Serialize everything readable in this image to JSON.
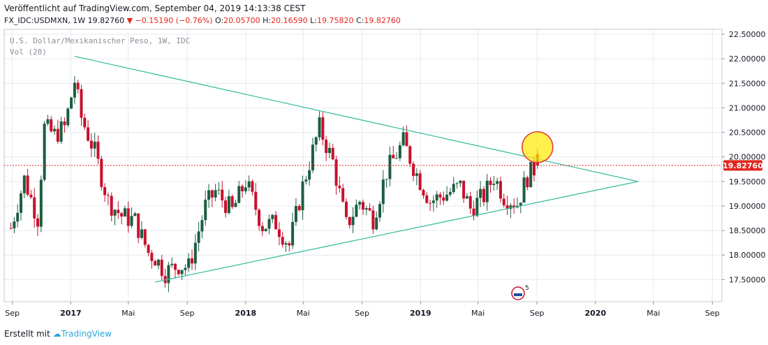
{
  "header": {
    "published": "Veröffentlicht auf TradingView.com, September 04, 2019 14:13:38 CEST",
    "symbol_line_prefix": "FX_IDC:USDMXN, 1W 19.82760",
    "change": "▼ −0.15190 (−0.76%)",
    "o_label": "O:",
    "o_value": "20.05700",
    "h_label": "H:",
    "h_value": "20.16590",
    "l_label": "L:",
    "l_value": "19.75820",
    "c_label": "C:",
    "c_value": "19.82760"
  },
  "overlay": {
    "series_title": "U.S. Dollar/Mexikanischer Peso, 1W, IDC",
    "volume_label": "Vol (20)"
  },
  "price_badge": "19.82760",
  "footer": {
    "created_with": "Erstellt mit",
    "brand": "TradingView"
  },
  "colors": {
    "up": "#1b5e40",
    "down": "#c8102e",
    "trendline": "#3ebf9f",
    "badge": "#e0261f",
    "highlight_fill": "#ffea00",
    "highlight_stroke": "#e53935",
    "grid": "#e6e9ef"
  },
  "chart_data": {
    "type": "candlestick",
    "symbol": "FX_IDC:USDMXN",
    "interval": "1W",
    "ylim": [
      17.05,
      22.6
    ],
    "yticks": [
      "22.50000",
      "22.00000",
      "21.50000",
      "21.00000",
      "20.50000",
      "20.00000",
      "19.50000",
      "19.00000",
      "18.50000",
      "18.00000",
      "17.50000"
    ],
    "xticks": [
      {
        "label": "Sep",
        "year": false
      },
      {
        "label": "2017",
        "year": true
      },
      {
        "label": "Mai",
        "year": false
      },
      {
        "label": "Sep",
        "year": false
      },
      {
        "label": "2018",
        "year": true
      },
      {
        "label": "Mai",
        "year": false
      },
      {
        "label": "Sep",
        "year": false
      },
      {
        "label": "2019",
        "year": true
      },
      {
        "label": "Mai",
        "year": false
      },
      {
        "label": "Sep",
        "year": false
      },
      {
        "label": "2020",
        "year": true
      },
      {
        "label": "Mai",
        "year": false
      },
      {
        "label": "Sep",
        "year": false
      }
    ],
    "last_close": 19.8276,
    "anchors": [
      [
        "2016-08-29",
        18.55
      ],
      [
        "2016-09-26",
        19.55
      ],
      [
        "2016-10-24",
        18.75
      ],
      [
        "2016-11-07",
        20.6
      ],
      [
        "2016-11-28",
        20.45
      ],
      [
        "2016-12-19",
        20.6
      ],
      [
        "2017-01-09",
        21.55
      ],
      [
        "2017-01-23",
        20.8
      ],
      [
        "2017-02-20",
        20.1
      ],
      [
        "2017-03-20",
        19.1
      ],
      [
        "2017-04-17",
        18.8
      ],
      [
        "2017-05-15",
        18.7
      ],
      [
        "2017-06-12",
        18.05
      ],
      [
        "2017-06-26",
        17.95
      ],
      [
        "2017-07-17",
        17.65
      ],
      [
        "2017-08-14",
        17.8
      ],
      [
        "2017-09-04",
        17.75
      ],
      [
        "2017-10-09",
        19.0
      ],
      [
        "2017-10-30",
        19.3
      ],
      [
        "2017-12-04",
        18.9
      ],
      [
        "2018-01-01",
        19.5
      ],
      [
        "2018-02-05",
        18.6
      ],
      [
        "2018-03-05",
        18.65
      ],
      [
        "2018-04-02",
        18.2
      ],
      [
        "2018-04-30",
        19.4
      ],
      [
        "2018-06-04",
        20.6
      ],
      [
        "2018-07-02",
        19.9
      ],
      [
        "2018-07-30",
        18.6
      ],
      [
        "2018-08-27",
        19.1
      ],
      [
        "2018-09-24",
        18.75
      ],
      [
        "2018-10-22",
        19.7
      ],
      [
        "2018-11-26",
        20.3
      ],
      [
        "2018-12-24",
        19.65
      ],
      [
        "2019-01-21",
        19.1
      ],
      [
        "2019-02-25",
        19.25
      ],
      [
        "2019-03-25",
        19.4
      ],
      [
        "2019-04-15",
        18.95
      ],
      [
        "2019-05-13",
        19.2
      ],
      [
        "2019-06-03",
        19.6
      ],
      [
        "2019-06-24",
        19.2
      ],
      [
        "2019-07-22",
        19.05
      ],
      [
        "2019-08-12",
        19.6
      ],
      [
        "2019-09-02",
        19.82
      ]
    ],
    "trendlines": [
      {
        "from": [
          "2017-01-09",
          22.05
        ],
        "to": [
          "2020-03-30",
          19.5
        ]
      },
      {
        "from": [
          "2017-06-26",
          17.45
        ],
        "to": [
          "2020-03-30",
          19.5
        ]
      }
    ],
    "highlight": {
      "date": "2019-09-02",
      "price": 20.2
    }
  }
}
